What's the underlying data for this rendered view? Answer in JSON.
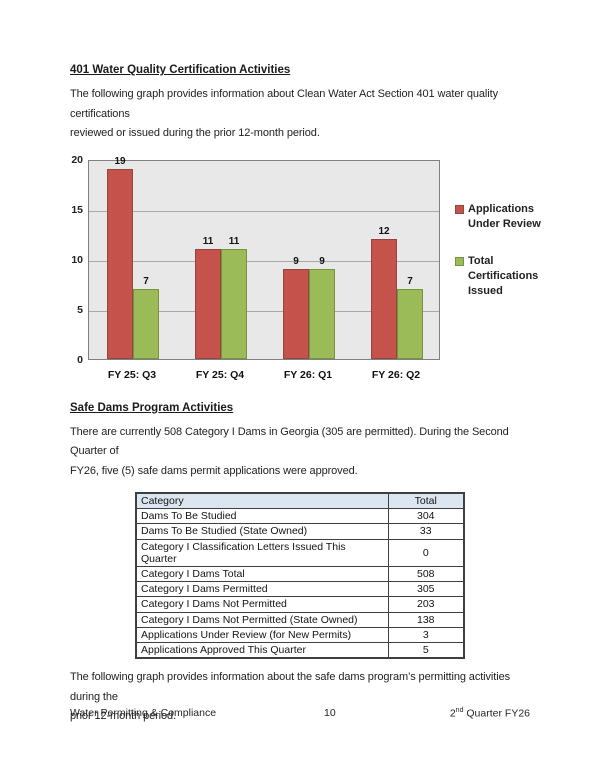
{
  "document": {
    "section_401": {
      "heading": "401 Water Quality Certification Activities",
      "paragraph_lines": [
        "The following graph provides information about Clean Water Act Section 401 water quality certifications",
        "reviewed or issued during the prior 12-month period."
      ]
    },
    "section_safe_dams": {
      "heading": "Safe Dams Program Activities",
      "paragraph_lines": [
        "There are currently 508 Category I Dams in Georgia (305 are permitted).  During the Second Quarter of",
        "FY26, five (5) safe dams permit applications were approved."
      ],
      "paragraph2_lines": [
        "The following graph provides information about the safe dams program’s permitting activities during the",
        "prior 12-month period."
      ]
    },
    "footer": {
      "left": "Water Permitting & Compliance",
      "page_number": "10",
      "right_base": "2",
      "right_superscript": "nd",
      "right_rest": " Quarter FY26"
    }
  },
  "chart_data": {
    "type": "bar",
    "title": "",
    "categories": [
      "FY 25: Q3",
      "FY 25: Q4",
      "FY 26: Q1",
      "FY 26: Q2"
    ],
    "series": [
      {
        "name": "Applications Under Review",
        "values": [
          19,
          11,
          9,
          12
        ],
        "color": "#C5534B",
        "border_color": "#8E4742"
      },
      {
        "name": "Total Certifications Issued",
        "values": [
          7,
          11,
          9,
          7
        ],
        "color": "#9BBB59",
        "border_color": "#77933C"
      }
    ],
    "xlabel": "",
    "ylabel": "",
    "ylim": [
      0,
      20
    ],
    "yticks": [
      0,
      5,
      10,
      15,
      20
    ],
    "grid": true,
    "gridline_color": "#A8A8A8",
    "plot_background": "#E8E8E8",
    "plot_border_color": "#808080",
    "legend_position": "right",
    "data_labels": true
  },
  "dams_table": {
    "headers": [
      "Category",
      "Total"
    ],
    "header_background": "#DCE6F1",
    "rows": [
      [
        "Dams To Be Studied",
        "304"
      ],
      [
        "Dams To Be Studied (State Owned)",
        "33"
      ],
      [
        "Category I Classification Letters Issued This Quarter",
        "0"
      ],
      [
        "Category I Dams Total",
        "508"
      ],
      [
        "Category I Dams Permitted",
        "305"
      ],
      [
        "Category I Dams Not Permitted",
        "203"
      ],
      [
        "Category I Dams Not Permitted (State Owned)",
        "138"
      ],
      [
        "Applications Under Review (for New Permits)",
        "3"
      ],
      [
        "Applications Approved This Quarter",
        "5"
      ]
    ]
  }
}
